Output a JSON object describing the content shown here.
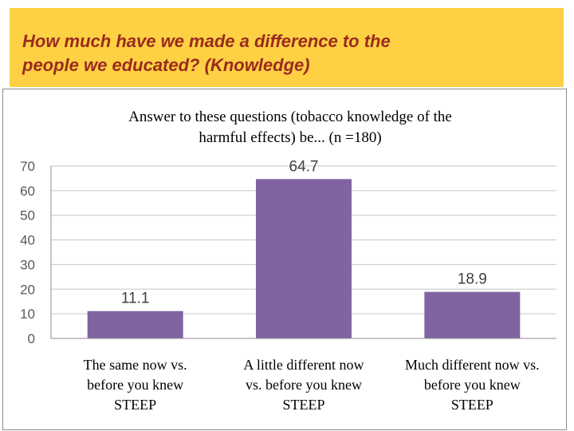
{
  "slide": {
    "title": "How much have we made a difference to the\npeople we educated? (Knowledge)",
    "banner_color": "#fdd143",
    "title_color": "#9b2a1e"
  },
  "chart_data": {
    "type": "bar",
    "title_lines": [
      "Answer to these questions (tobacco knowledge of the",
      "harmful effects) be... (n =180)"
    ],
    "categories": [
      [
        "The same now vs.",
        "before you knew",
        "STEEP"
      ],
      [
        "A little  different now",
        "vs. before you knew",
        "STEEP"
      ],
      [
        "Much different now vs.",
        "before you knew",
        "STEEP"
      ]
    ],
    "values": [
      11.1,
      64.7,
      18.9
    ],
    "data_labels": [
      "11.1",
      "64.7",
      "18.9"
    ],
    "yticks": [
      "0",
      "10",
      "20",
      "30",
      "40",
      "50",
      "60",
      "70"
    ],
    "ylim": [
      0,
      70
    ],
    "grid": true,
    "bar_color": "#8064a2"
  }
}
